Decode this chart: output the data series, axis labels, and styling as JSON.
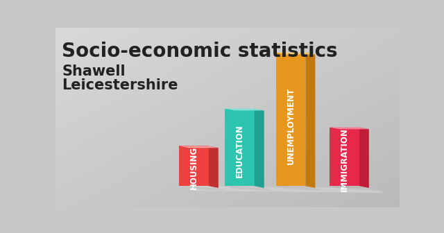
{
  "title": "Socio-economic statistics",
  "subtitle1": "Shawell",
  "subtitle2": "Leicestershire",
  "categories": [
    "HOUSING",
    "EDUCATION",
    "UNEMPLOYMENT",
    "IMMIGRATION"
  ],
  "values": [
    0.3,
    0.58,
    1.0,
    0.44
  ],
  "front_colors": [
    "#F04040",
    "#2DC5B0",
    "#E8971E",
    "#E8284A"
  ],
  "side_colors": [
    "#C03030",
    "#20A090",
    "#C07A10",
    "#C01E38"
  ],
  "top_colors": [
    "#F5A0A0",
    "#80E0D4",
    "#F5C870",
    "#F08090"
  ],
  "background_color_top": "#C8C8C8",
  "background_color_bot": "#E8E8E8",
  "title_color": "#222222",
  "label_color": "#FFFFFF",
  "title_fontsize": 20,
  "subtitle_fontsize": 15,
  "label_fontsize": 8.5
}
